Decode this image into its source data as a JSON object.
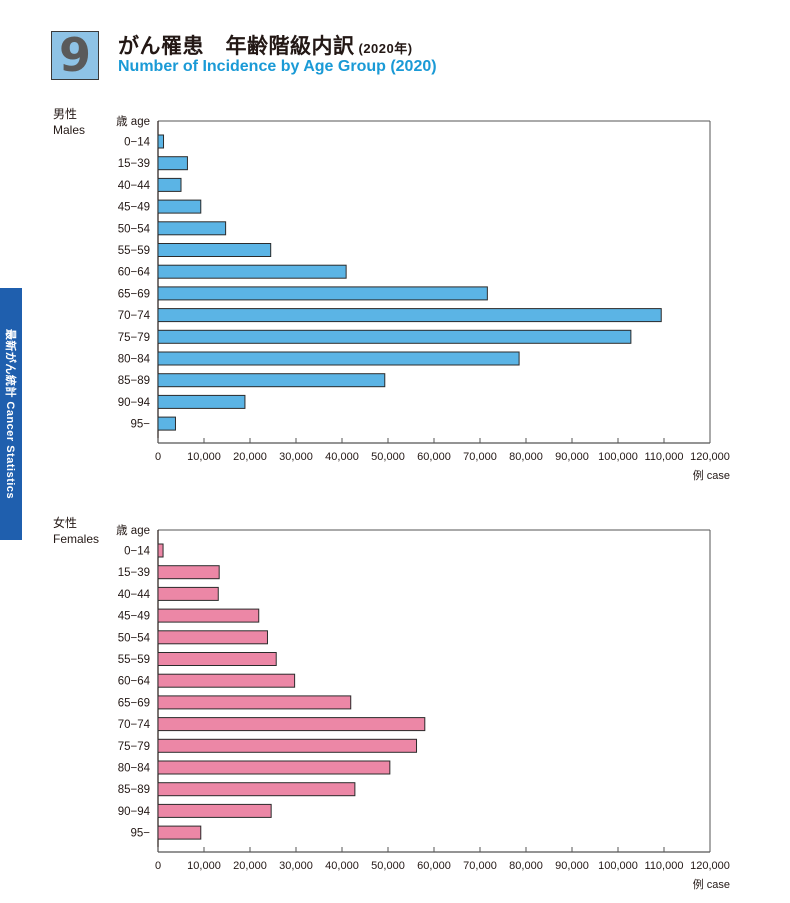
{
  "header": {
    "section_number": "9",
    "title_jp": "がん罹患　年齢階級内訳",
    "title_year": "(2020年)",
    "title_en": "Number of Incidence by Age Group (2020)"
  },
  "side_tab": {
    "label": "最新がん統計 Cancer Statistics",
    "color": "#1f5fae"
  },
  "chart_data": [
    {
      "type": "bar",
      "orientation": "horizontal",
      "group_label_jp": "男性",
      "group_label_en": "Males",
      "ylabel": "歳 age",
      "xlabel": "例 case",
      "bar_color": "#5bb4e5",
      "xlim": [
        0,
        120000
      ],
      "xticks": [
        "0",
        "10,000",
        "20,000",
        "30,000",
        "40,000",
        "50,000",
        "60,000",
        "70,000",
        "80,000",
        "90,000",
        "100,000",
        "110,000",
        "120,000"
      ],
      "categories": [
        "0−14",
        "15−39",
        "40−44",
        "45−49",
        "50−54",
        "55−59",
        "60−64",
        "65−69",
        "70−74",
        "75−79",
        "80−84",
        "85−89",
        "90−94",
        "95−"
      ],
      "values": [
        1200,
        6400,
        5000,
        9300,
        14700,
        24500,
        40900,
        71600,
        109400,
        102800,
        78500,
        49300,
        18900,
        3800
      ],
      "grid": false
    },
    {
      "type": "bar",
      "orientation": "horizontal",
      "group_label_jp": "女性",
      "group_label_en": "Females",
      "ylabel": "歳 age",
      "xlabel": "例 case",
      "bar_color": "#ec87a6",
      "xlim": [
        0,
        120000
      ],
      "xticks": [
        "0",
        "10,000",
        "20,000",
        "30,000",
        "40,000",
        "50,000",
        "60,000",
        "70,000",
        "80,000",
        "90,000",
        "100,000",
        "110,000",
        "120,000"
      ],
      "categories": [
        "0−14",
        "15−39",
        "40−44",
        "45−49",
        "50−54",
        "55−59",
        "60−64",
        "65−69",
        "70−74",
        "75−79",
        "80−84",
        "85−89",
        "90−94",
        "95−"
      ],
      "values": [
        1100,
        13300,
        13100,
        21900,
        23800,
        25700,
        29700,
        41900,
        58000,
        56200,
        50400,
        42800,
        24600,
        9300
      ],
      "grid": false
    }
  ]
}
